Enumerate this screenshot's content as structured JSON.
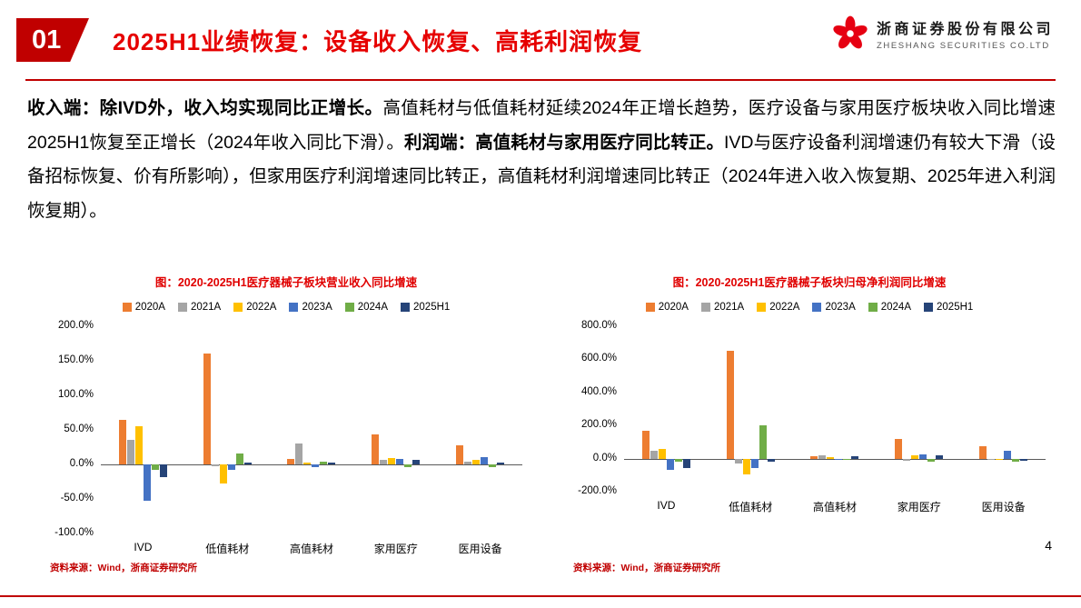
{
  "header": {
    "section_number": "01",
    "title": "2025H1业绩恢复：设备收入恢复、高耗利润恢复",
    "company_cn": "浙商证券股份有限公司",
    "company_en": "ZHESHANG SECURITIES CO.LTD"
  },
  "paragraph": {
    "segments": [
      {
        "text": "收入端：除IVD外，收入均实现同比正增长。",
        "bold": true
      },
      {
        "text": "高值耗材与低值耗材延续2024年正增长趋势，医疗设备与家用医疗板块收入同比增速2025H1恢复至正增长（2024年收入同比下滑）。",
        "bold": false
      },
      {
        "text": "利润端：高值耗材与家用医疗同比转正。",
        "bold": true
      },
      {
        "text": "IVD与医疗设备利润增速仍有较大下滑（设备招标恢复、价有所影响），但家用医疗利润增速同比转正，高值耗材利润增速同比转正（2024年进入收入恢复期、2025年进入利润恢复期）。",
        "bold": false
      }
    ]
  },
  "colors": {
    "brand_red": "#c00000",
    "title_red": "#e60000",
    "chart_title_red": "#e00000"
  },
  "chart_data": [
    {
      "type": "bar",
      "title": "图：2020-2025H1医疗器械子板块营业收入同比增速",
      "categories": [
        "IVD",
        "低值耗材",
        "高值耗材",
        "家用医疗",
        "医用设备"
      ],
      "series": [
        {
          "name": "2020A",
          "color": "#ED7D31",
          "values": [
            65,
            160,
            8,
            43,
            28
          ]
        },
        {
          "name": "2021A",
          "color": "#A5A5A5",
          "values": [
            36,
            -3,
            30,
            6,
            4
          ]
        },
        {
          "name": "2022A",
          "color": "#FFC000",
          "values": [
            55,
            -28,
            3,
            9,
            6
          ]
        },
        {
          "name": "2023A",
          "color": "#4472C4",
          "values": [
            -52,
            -8,
            -4,
            8,
            11
          ]
        },
        {
          "name": "2024A",
          "color": "#70AD47",
          "values": [
            -8,
            16,
            4,
            -4,
            -4
          ]
        },
        {
          "name": "2025H1",
          "color": "#264478",
          "values": [
            -18,
            3,
            3,
            6,
            2
          ]
        }
      ],
      "ylim": [
        -100,
        200
      ],
      "yticks": [
        200,
        150,
        100,
        50,
        0,
        -50,
        -100
      ],
      "unit": "%",
      "grid": false,
      "legend_position": "top",
      "source": "资料来源：Wind，浙商证券研究所"
    },
    {
      "type": "bar",
      "title": "图：2020-2025H1医疗器械子板块归母净利润同比增速",
      "categories": [
        "IVD",
        "低值耗材",
        "高值耗材",
        "家用医疗",
        "医用设备"
      ],
      "series": [
        {
          "name": "2020A",
          "color": "#ED7D31",
          "values": [
            170,
            650,
            15,
            120,
            75
          ]
        },
        {
          "name": "2021A",
          "color": "#A5A5A5",
          "values": [
            50,
            -30,
            20,
            -15,
            -5
          ]
        },
        {
          "name": "2022A",
          "color": "#FFC000",
          "values": [
            60,
            -95,
            8,
            20,
            -10
          ]
        },
        {
          "name": "2023A",
          "color": "#4472C4",
          "values": [
            -70,
            -55,
            -10,
            25,
            45
          ]
        },
        {
          "name": "2024A",
          "color": "#70AD47",
          "values": [
            -20,
            200,
            -5,
            -20,
            -20
          ]
        },
        {
          "name": "2025H1",
          "color": "#264478",
          "values": [
            -55,
            -20,
            12,
            18,
            -15
          ]
        }
      ],
      "ylim": [
        -200,
        800
      ],
      "yticks": [
        800,
        600,
        400,
        200,
        0,
        -200
      ],
      "unit": "%",
      "grid": false,
      "legend_position": "top",
      "source": "资料来源：Wind，浙商证券研究所"
    }
  ],
  "footer": {
    "page_number": "4"
  }
}
